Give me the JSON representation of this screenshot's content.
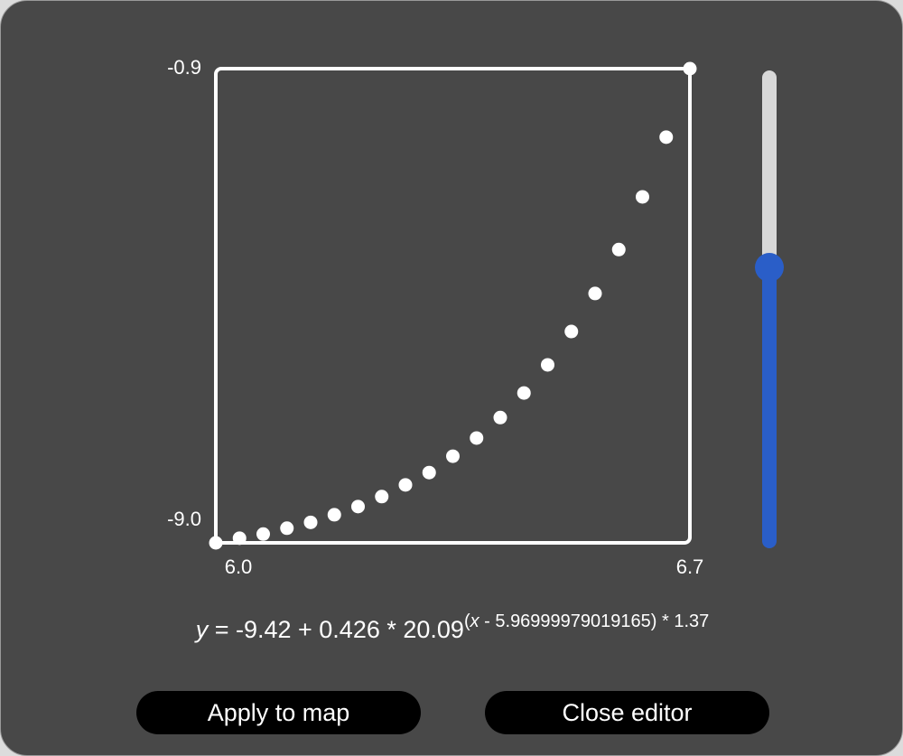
{
  "chart_data": {
    "type": "scatter",
    "x": [
      6.0,
      6.035,
      6.07,
      6.105,
      6.14,
      6.175,
      6.21,
      6.245,
      6.28,
      6.315,
      6.35,
      6.385,
      6.42,
      6.455,
      6.49,
      6.525,
      6.56,
      6.595,
      6.63,
      6.665,
      6.7
    ],
    "y": [
      -9.0,
      -8.92,
      -8.85,
      -8.75,
      -8.65,
      -8.52,
      -8.38,
      -8.21,
      -8.01,
      -7.8,
      -7.52,
      -7.21,
      -6.86,
      -6.44,
      -5.96,
      -5.39,
      -4.74,
      -3.99,
      -3.09,
      -2.07,
      -0.9
    ],
    "color": "#ffffff",
    "xlim": [
      6.0,
      6.7
    ],
    "ylim": [
      -9.0,
      -0.9
    ],
    "xticks": [
      {
        "value": 6.0,
        "label": "6.0"
      },
      {
        "value": 6.7,
        "label": "6.7"
      }
    ],
    "yticks": [
      {
        "value": -9.0,
        "label": "-9.0"
      },
      {
        "value": -0.9,
        "label": "-0.9"
      }
    ]
  },
  "formula": {
    "lhs": "y",
    "rhs": " = -9.42 + 0.426 * 20.09",
    "exp_open": "(",
    "exp_var": "x",
    "exp_rest": " - 5.96999979019165) * 1.37"
  },
  "buttons": [
    "Apply to map",
    "Close editor"
  ]
}
